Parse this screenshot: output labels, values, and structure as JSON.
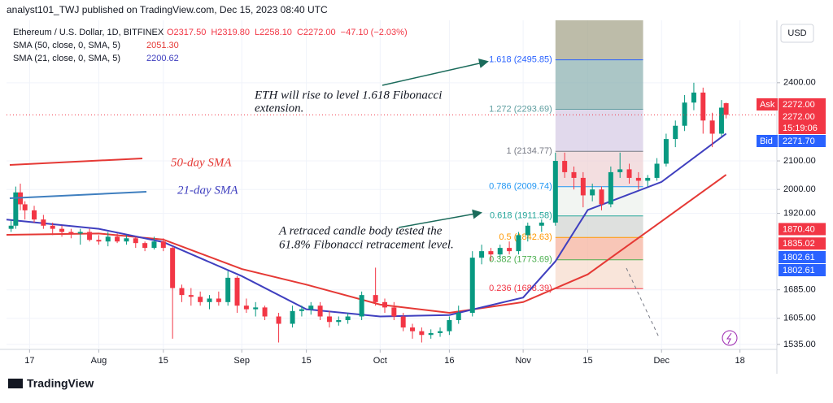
{
  "header": {
    "published": "analyst101_TWJ published on TradingView.com, Dec 15, 2023 08:40 UTC",
    "symbol": "Ethereum / U.S. Dollar, 1D, BITFINEX",
    "ohlc": [
      "O2317.50",
      "H2319.80",
      "L2258.10",
      "C2272.00",
      "−47.10 (−2.03%)"
    ],
    "sma50_label": "SMA (50, close, 0, SMA, 5)",
    "sma50_value": "2051.30",
    "sma21_label": "SMA (21, close, 0, SMA, 5)",
    "sma21_value": "2200.62",
    "currency": "USD",
    "footer": "TradingView"
  },
  "chart_data": {
    "type": "candlestick",
    "log_scale": true,
    "up_color": "#089981",
    "down_color": "#f23645",
    "xlim": [
      -5,
      162
    ],
    "ylim": [
      1522,
      2670
    ],
    "xticks": [
      {
        "value": 0,
        "label": "17"
      },
      {
        "value": 15,
        "label": "Aug"
      },
      {
        "value": 29,
        "label": "15"
      },
      {
        "value": 46,
        "label": "Sep"
      },
      {
        "value": 60,
        "label": "15"
      },
      {
        "value": 76,
        "label": "Oct"
      },
      {
        "value": 91,
        "label": "16"
      },
      {
        "value": 107,
        "label": "Nov"
      },
      {
        "value": 121,
        "label": "15"
      },
      {
        "value": 137,
        "label": "Dec"
      },
      {
        "value": 154,
        "label": "18"
      }
    ],
    "yticks": [
      {
        "value": 2400,
        "label": "2400.00"
      },
      {
        "value": 2100,
        "label": "2100.00"
      },
      {
        "value": 2000,
        "label": "2000.00"
      },
      {
        "value": 1920,
        "label": "1920.00"
      },
      {
        "value": 1685,
        "label": "1685.00"
      },
      {
        "value": 1605,
        "label": "1605.00"
      },
      {
        "value": 1535,
        "label": "1535.00"
      }
    ],
    "candles": [
      {
        "x": -4,
        "open": 1870,
        "high": 1900,
        "low": 1860,
        "close": 1880
      },
      {
        "x": -3,
        "open": 1880,
        "high": 2010,
        "low": 1870,
        "close": 1990
      },
      {
        "x": -2,
        "open": 1990,
        "high": 2020,
        "low": 1930,
        "close": 1950
      },
      {
        "x": -1,
        "open": 1950,
        "high": 1960,
        "low": 1900,
        "close": 1930
      },
      {
        "x": 1,
        "open": 1930,
        "high": 1945,
        "low": 1890,
        "close": 1900
      },
      {
        "x": 3,
        "open": 1900,
        "high": 1915,
        "low": 1870,
        "close": 1880
      },
      {
        "x": 5,
        "open": 1880,
        "high": 1890,
        "low": 1850,
        "close": 1870
      },
      {
        "x": 7,
        "open": 1870,
        "high": 1880,
        "low": 1845,
        "close": 1860
      },
      {
        "x": 9,
        "open": 1860,
        "high": 1870,
        "low": 1840,
        "close": 1855
      },
      {
        "x": 11,
        "open": 1855,
        "high": 1870,
        "low": 1820,
        "close": 1860
      },
      {
        "x": 13,
        "open": 1860,
        "high": 1870,
        "low": 1830,
        "close": 1835
      },
      {
        "x": 15,
        "open": 1835,
        "high": 1850,
        "low": 1820,
        "close": 1830
      },
      {
        "x": 17,
        "open": 1830,
        "high": 1860,
        "low": 1815,
        "close": 1845
      },
      {
        "x": 19,
        "open": 1845,
        "high": 1855,
        "low": 1825,
        "close": 1830
      },
      {
        "x": 21,
        "open": 1830,
        "high": 1850,
        "low": 1820,
        "close": 1840
      },
      {
        "x": 23,
        "open": 1840,
        "high": 1845,
        "low": 1810,
        "close": 1825
      },
      {
        "x": 25,
        "open": 1825,
        "high": 1830,
        "low": 1800,
        "close": 1810
      },
      {
        "x": 27,
        "open": 1810,
        "high": 1845,
        "low": 1805,
        "close": 1830
      },
      {
        "x": 29,
        "open": 1830,
        "high": 1840,
        "low": 1800,
        "close": 1810
      },
      {
        "x": 31,
        "open": 1810,
        "high": 1815,
        "low": 1550,
        "close": 1690
      },
      {
        "x": 33,
        "open": 1690,
        "high": 1700,
        "low": 1650,
        "close": 1670
      },
      {
        "x": 35,
        "open": 1670,
        "high": 1690,
        "low": 1640,
        "close": 1665
      },
      {
        "x": 37,
        "open": 1665,
        "high": 1680,
        "low": 1640,
        "close": 1650
      },
      {
        "x": 39,
        "open": 1650,
        "high": 1670,
        "low": 1630,
        "close": 1660
      },
      {
        "x": 41,
        "open": 1660,
        "high": 1680,
        "low": 1640,
        "close": 1650
      },
      {
        "x": 43,
        "open": 1650,
        "high": 1740,
        "low": 1640,
        "close": 1720
      },
      {
        "x": 45,
        "open": 1720,
        "high": 1725,
        "low": 1620,
        "close": 1640
      },
      {
        "x": 47,
        "open": 1640,
        "high": 1660,
        "low": 1620,
        "close": 1630
      },
      {
        "x": 49,
        "open": 1630,
        "high": 1650,
        "low": 1610,
        "close": 1635
      },
      {
        "x": 51,
        "open": 1635,
        "high": 1640,
        "low": 1600,
        "close": 1610
      },
      {
        "x": 54,
        "open": 1610,
        "high": 1620,
        "low": 1540,
        "close": 1590
      },
      {
        "x": 57,
        "open": 1590,
        "high": 1640,
        "low": 1580,
        "close": 1625
      },
      {
        "x": 59,
        "open": 1625,
        "high": 1640,
        "low": 1610,
        "close": 1630
      },
      {
        "x": 61,
        "open": 1630,
        "high": 1650,
        "low": 1615,
        "close": 1640
      },
      {
        "x": 63,
        "open": 1640,
        "high": 1650,
        "low": 1600,
        "close": 1610
      },
      {
        "x": 65,
        "open": 1610,
        "high": 1625,
        "low": 1580,
        "close": 1595
      },
      {
        "x": 67,
        "open": 1595,
        "high": 1610,
        "low": 1585,
        "close": 1600
      },
      {
        "x": 69,
        "open": 1600,
        "high": 1620,
        "low": 1590,
        "close": 1610
      },
      {
        "x": 72,
        "open": 1610,
        "high": 1680,
        "low": 1600,
        "close": 1670
      },
      {
        "x": 75,
        "open": 1670,
        "high": 1750,
        "low": 1640,
        "close": 1650
      },
      {
        "x": 77,
        "open": 1650,
        "high": 1660,
        "low": 1620,
        "close": 1635
      },
      {
        "x": 79,
        "open": 1635,
        "high": 1650,
        "low": 1600,
        "close": 1610
      },
      {
        "x": 81,
        "open": 1610,
        "high": 1620,
        "low": 1570,
        "close": 1580
      },
      {
        "x": 83,
        "open": 1580,
        "high": 1590,
        "low": 1550,
        "close": 1570
      },
      {
        "x": 85,
        "open": 1570,
        "high": 1580,
        "low": 1540,
        "close": 1560
      },
      {
        "x": 87,
        "open": 1560,
        "high": 1575,
        "low": 1550,
        "close": 1565
      },
      {
        "x": 89,
        "open": 1565,
        "high": 1580,
        "low": 1555,
        "close": 1570
      },
      {
        "x": 91,
        "open": 1570,
        "high": 1610,
        "low": 1560,
        "close": 1600
      },
      {
        "x": 93,
        "open": 1600,
        "high": 1640,
        "low": 1590,
        "close": 1620
      },
      {
        "x": 96,
        "open": 1620,
        "high": 1800,
        "low": 1610,
        "close": 1780
      },
      {
        "x": 98,
        "open": 1780,
        "high": 1820,
        "low": 1760,
        "close": 1800
      },
      {
        "x": 100,
        "open": 1800,
        "high": 1810,
        "low": 1770,
        "close": 1790
      },
      {
        "x": 102,
        "open": 1790,
        "high": 1820,
        "low": 1780,
        "close": 1810
      },
      {
        "x": 104,
        "open": 1810,
        "high": 1830,
        "low": 1790,
        "close": 1800
      },
      {
        "x": 106,
        "open": 1800,
        "high": 1860,
        "low": 1790,
        "close": 1850
      },
      {
        "x": 108,
        "open": 1850,
        "high": 1890,
        "low": 1830,
        "close": 1880
      },
      {
        "x": 111,
        "open": 1880,
        "high": 1900,
        "low": 1860,
        "close": 1890
      },
      {
        "x": 114,
        "open": 1890,
        "high": 2130,
        "low": 1880,
        "close": 2100
      },
      {
        "x": 116,
        "open": 2100,
        "high": 2130,
        "low": 2040,
        "close": 2060
      },
      {
        "x": 118,
        "open": 2060,
        "high": 2080,
        "low": 2000,
        "close": 2040
      },
      {
        "x": 120,
        "open": 2040,
        "high": 2060,
        "low": 1940,
        "close": 1980
      },
      {
        "x": 122,
        "open": 1980,
        "high": 2020,
        "low": 1960,
        "close": 2000
      },
      {
        "x": 124,
        "open": 2000,
        "high": 2010,
        "low": 1930,
        "close": 1950
      },
      {
        "x": 126,
        "open": 1950,
        "high": 2080,
        "low": 1940,
        "close": 2060
      },
      {
        "x": 128,
        "open": 2060,
        "high": 2130,
        "low": 2040,
        "close": 2070
      },
      {
        "x": 130,
        "open": 2070,
        "high": 2090,
        "low": 2020,
        "close": 2040
      },
      {
        "x": 132,
        "open": 2040,
        "high": 2060,
        "low": 2000,
        "close": 2030
      },
      {
        "x": 134,
        "open": 2030,
        "high": 2050,
        "low": 2010,
        "close": 2040
      },
      {
        "x": 136,
        "open": 2040,
        "high": 2110,
        "low": 2030,
        "close": 2090
      },
      {
        "x": 138,
        "open": 2090,
        "high": 2200,
        "low": 2080,
        "close": 2180
      },
      {
        "x": 140,
        "open": 2180,
        "high": 2250,
        "low": 2150,
        "close": 2230
      },
      {
        "x": 142,
        "open": 2230,
        "high": 2350,
        "low": 2210,
        "close": 2320
      },
      {
        "x": 144,
        "open": 2320,
        "high": 2400,
        "low": 2290,
        "close": 2360
      },
      {
        "x": 146,
        "open": 2360,
        "high": 2380,
        "low": 2200,
        "close": 2250
      },
      {
        "x": 148,
        "open": 2250,
        "high": 2280,
        "low": 2150,
        "close": 2200
      },
      {
        "x": 150,
        "open": 2200,
        "high": 2330,
        "low": 2190,
        "close": 2300
      },
      {
        "x": 151,
        "open": 2317.5,
        "high": 2319.8,
        "low": 2258.1,
        "close": 2272
      }
    ],
    "series": [
      {
        "name": "50-day SMA",
        "color": "#e53935",
        "x": [
          -5,
          15,
          29,
          46,
          60,
          76,
          91,
          107,
          121,
          137,
          151
        ],
        "values": [
          1851,
          1855,
          1836,
          1746,
          1700,
          1643,
          1620,
          1650,
          1730,
          1894,
          2051
        ]
      },
      {
        "name": "21-day SMA",
        "color": "#3f3fbf",
        "x": [
          -5,
          15,
          29,
          46,
          60,
          76,
          91,
          107,
          114,
          121,
          137,
          151
        ],
        "values": [
          1900,
          1870,
          1828,
          1725,
          1630,
          1610,
          1614,
          1663,
          1769,
          1931,
          2026,
          2200
        ]
      }
    ],
    "fib_x": [
      114,
      133
    ],
    "fib_levels": [
      {
        "value": 2495.85,
        "label": "1.618 (2495.85)"
      },
      {
        "value": 2293.69,
        "label": "1.272 (2293.69)"
      },
      {
        "value": 2134.77,
        "label": "1 (2134.77)"
      },
      {
        "value": 2009.74,
        "label": "0.786 (2009.74)"
      },
      {
        "value": 1911.58,
        "label": "0.618 (1911.58)"
      },
      {
        "value": 1842.63,
        "label": "0.5 (1842.63)"
      },
      {
        "value": 1773.69,
        "label": "0.382 (1773.69)"
      },
      {
        "value": 1688.39,
        "label": "0.236 (1688.39)"
      }
    ],
    "fib_band_colors": [
      "#a7a58c",
      "#8fb3b3",
      "#d7cce6",
      "#efd3d6",
      "#eef1ee",
      "#d3d5d3",
      "#f6b39f",
      "#f7dccd"
    ],
    "fib_line_colors": [
      "#2962ff",
      "#5f9ea0",
      "#787b86",
      "#2196f3",
      "#26a69a",
      "#ff9800",
      "#4caf50",
      "#f23645"
    ],
    "annotations": [
      "ETH will rise to level 1.618 Fibonacci",
      "extension.",
      "A retraced candle body tested the",
      "61.8% Fibonacci retracement level.",
      "50-day SMA",
      "21-day SMA"
    ],
    "price_tags": [
      {
        "value": 2272,
        "label": "2272.00"
      },
      {
        "value": 2272,
        "label": "2272.00"
      },
      {
        "value": 2271.7,
        "label": "2271.70"
      },
      {
        "value": 1870.4,
        "label": "1870.40"
      },
      {
        "value": 1835.02,
        "label": "1835.02"
      },
      {
        "value": 1802.61,
        "label": "1802.61"
      },
      {
        "value": 1802.61,
        "label": "1802.61"
      }
    ],
    "tag_texts": [
      "Ask",
      "15:19:06",
      "Bid"
    ]
  }
}
